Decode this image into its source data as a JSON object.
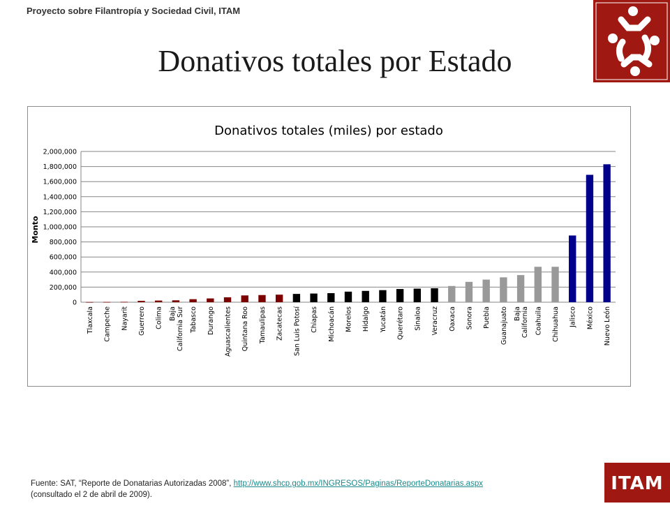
{
  "header": {
    "org": "Proyecto sobre Filantropía y Sociedad Civil, ITAM"
  },
  "slide": {
    "title": "Donativos totales por Estado"
  },
  "logos": {
    "top_right": "filantropia-logo",
    "bottom_right": "itam-logo",
    "itam_text": "ITAM"
  },
  "footer": {
    "source_prefix": "Fuente: SAT, “Reporte de Donatarias Autorizadas 2008”, ",
    "link": "http://www.shcp.gob.mx/INGRESOS/Paginas/ReporteDonatarias.aspx",
    "consulted": "(consultado el 2 de abril de 2009)."
  },
  "colors": {
    "brand_red": "#a01812",
    "dark_red": "#7b0000",
    "black": "#000000",
    "gray": "#999999",
    "navy": "#00008b"
  },
  "chart_data": {
    "type": "bar",
    "title": "Donativos totales (miles) por estado",
    "ylabel": "Monto",
    "xlabel": "",
    "ylim": [
      0,
      2000000
    ],
    "yticks": [
      "0",
      "200,000",
      "400,000",
      "600,000",
      "800,000",
      "1,000,000",
      "1,200,000",
      "1,400,000",
      "1,600,000",
      "1,800,000",
      "2,000,000"
    ],
    "grid": true,
    "categories": [
      "Tlaxcala",
      "Campeche",
      "Nayarit",
      "Guerrero",
      "Colima",
      "Baja California Sur",
      "Tabasco",
      "Durango",
      "Aguascalientes",
      "Quintana Roo",
      "Tamaulipas",
      "Zacatecas",
      "San Luis Potosí",
      "Chiapas",
      "Michoacán",
      "Morelos",
      "Hidalgo",
      "Yucatán",
      "Querétaro",
      "Sinaloa",
      "Veracruz",
      "Oaxaca",
      "Sonora",
      "Puebla",
      "Guanajuato",
      "Baja California",
      "Coahuila",
      "Chihuahua",
      "Jalisco",
      "México",
      "Nuevo León"
    ],
    "category_lines": [
      [
        "Tlaxcala"
      ],
      [
        "Campeche"
      ],
      [
        "Nayarit"
      ],
      [
        "Guerrero"
      ],
      [
        "Colima"
      ],
      [
        "Baja",
        "California Sur"
      ],
      [
        "Tabasco"
      ],
      [
        "Durango"
      ],
      [
        "Aguascalientes"
      ],
      [
        "Quintana Roo"
      ],
      [
        "Tamaulipas"
      ],
      [
        "Zacatecas"
      ],
      [
        "San Luis Potosí"
      ],
      [
        "Chiapas"
      ],
      [
        "Michoacán"
      ],
      [
        "Morelos"
      ],
      [
        "Hidalgo"
      ],
      [
        "Yucatán"
      ],
      [
        "Querétaro"
      ],
      [
        "Sinaloa"
      ],
      [
        "Veracruz"
      ],
      [
        "Oaxaca"
      ],
      [
        "Sonora"
      ],
      [
        "Puebla"
      ],
      [
        "Guanajuato"
      ],
      [
        "Baja",
        "California"
      ],
      [
        "Coahuila"
      ],
      [
        "Chihuahua"
      ],
      [
        "Jalisco"
      ],
      [
        "México"
      ],
      [
        "Nuevo León"
      ]
    ],
    "values": [
      2000,
      3000,
      5000,
      18000,
      22000,
      25000,
      40000,
      50000,
      65000,
      90000,
      95000,
      100000,
      110000,
      115000,
      120000,
      140000,
      150000,
      160000,
      175000,
      180000,
      185000,
      215000,
      270000,
      300000,
      330000,
      360000,
      470000,
      470000,
      885000,
      1690000,
      1830000
    ],
    "bar_colors": [
      "#7b0000",
      "#7b0000",
      "#7b0000",
      "#7b0000",
      "#7b0000",
      "#7b0000",
      "#7b0000",
      "#7b0000",
      "#7b0000",
      "#7b0000",
      "#7b0000",
      "#7b0000",
      "#000000",
      "#000000",
      "#000000",
      "#000000",
      "#000000",
      "#000000",
      "#000000",
      "#000000",
      "#000000",
      "#999999",
      "#999999",
      "#999999",
      "#999999",
      "#999999",
      "#999999",
      "#999999",
      "#00008b",
      "#00008b",
      "#00008b"
    ]
  }
}
